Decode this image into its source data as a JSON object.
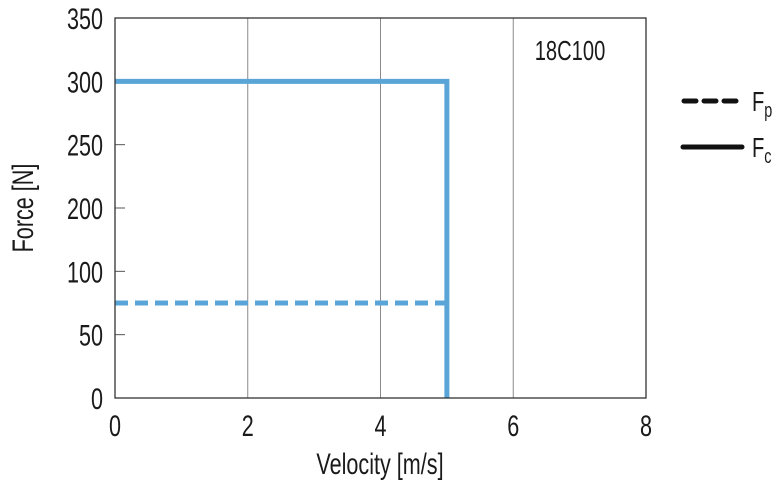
{
  "chart_data": {
    "type": "line",
    "title": "",
    "annotation": "18C100",
    "xlabel": "Velocity [m/s]",
    "ylabel": "Force [N]",
    "xlim": [
      0,
      8
    ],
    "x_ticks": [
      "0",
      "2",
      "4",
      "6",
      "8"
    ],
    "y_ticks": [
      "0",
      "50",
      "100",
      "200",
      "250",
      "300",
      "350"
    ],
    "grid": "vertical",
    "legend_position": "right",
    "color": "#5aa5d8",
    "series": [
      {
        "name": "Fp",
        "style": "dashed",
        "x": [
          0,
          5
        ],
        "y": [
          75,
          75
        ]
      },
      {
        "name": "Fc",
        "style": "solid",
        "x": [
          0,
          5,
          5
        ],
        "y": [
          300,
          300,
          0
        ]
      }
    ],
    "legend": [
      {
        "name": "F",
        "sub": "p",
        "style": "dashed"
      },
      {
        "name": "F",
        "sub": "c",
        "style": "solid"
      }
    ]
  }
}
